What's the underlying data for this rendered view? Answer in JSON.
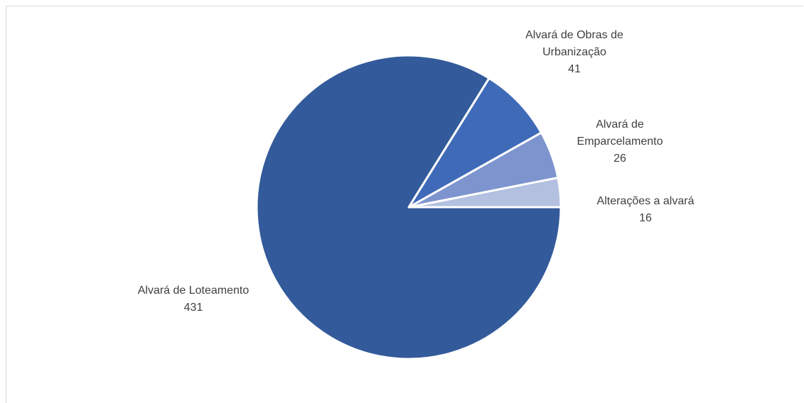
{
  "chart_data": {
    "type": "pie",
    "title": "",
    "slices": [
      {
        "label": "Alvará de Loteamento",
        "value": 431,
        "value_label": "431",
        "color": "#335A9A"
      },
      {
        "label": "Alvará de Obras de Urbanização",
        "value": 41,
        "value_label": "41",
        "color": "#3F6AB8"
      },
      {
        "label": "Alvará de Emparcelamento",
        "value": 26,
        "value_label": "26",
        "color": "#7E94CE"
      },
      {
        "label": "Alterações a alvará",
        "value": 16,
        "value_label": "16",
        "color": "#B4C0E0"
      }
    ],
    "legend": "none",
    "data_labels": "outside, category name and value"
  }
}
